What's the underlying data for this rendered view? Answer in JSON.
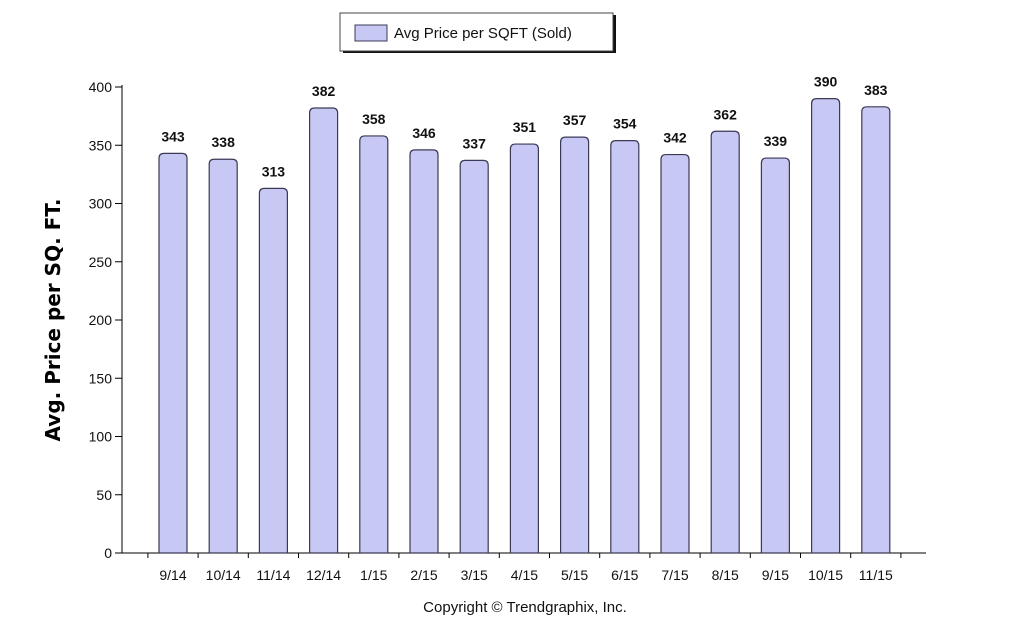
{
  "chart_data": {
    "type": "bar",
    "categories": [
      "9/14",
      "10/14",
      "11/14",
      "12/14",
      "1/15",
      "2/15",
      "3/15",
      "4/15",
      "5/15",
      "6/15",
      "7/15",
      "8/15",
      "9/15",
      "10/15",
      "11/15"
    ],
    "series": [
      {
        "name": "Avg Price per SQFT (Sold)",
        "values": [
          343,
          338,
          313,
          382,
          358,
          346,
          337,
          351,
          357,
          354,
          342,
          362,
          339,
          390,
          383
        ]
      }
    ],
    "ylabel": "Avg. Price per SQ. FT.",
    "xlabel": "",
    "ylim": [
      0,
      400
    ],
    "yticks": [
      0,
      50,
      100,
      150,
      200,
      250,
      300,
      350,
      400
    ],
    "legend": "top-center",
    "grid": false,
    "colors": {
      "bar_fill": "#c8c8f4",
      "bar_stroke": "#3a3a55"
    }
  },
  "footer": {
    "copyright": "Copyright © Trendgraphix, Inc."
  }
}
